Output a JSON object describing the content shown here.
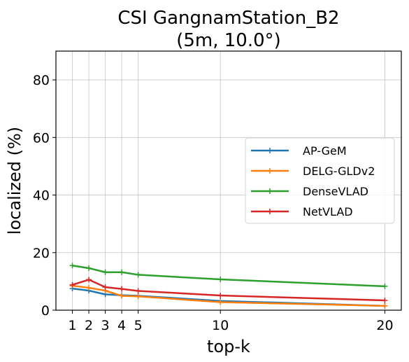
{
  "chart_data": {
    "type": "line",
    "title_line1": "CSI GangnamStation_B2",
    "title_line2": "(5m, 10.0°)",
    "xlabel": "top-k",
    "ylabel": "localized (%)",
    "x": [
      1,
      2,
      3,
      4,
      5,
      10,
      20
    ],
    "xticks": [
      "1",
      "2",
      "3",
      "4",
      "5",
      "10",
      "20"
    ],
    "xlim": [
      0,
      21
    ],
    "ylim": [
      0,
      90
    ],
    "yticks": [
      0,
      20,
      40,
      60,
      80
    ],
    "grid": true,
    "legend_position": "center-right",
    "series": [
      {
        "name": "AP-GeM",
        "color": "#1f77b4",
        "values": [
          7.5,
          6.8,
          5.5,
          5.2,
          5.0,
          3.2,
          1.5
        ]
      },
      {
        "name": "DELG-GLDv2",
        "color": "#ff7f0e",
        "values": [
          8.5,
          7.8,
          6.8,
          5.0,
          4.8,
          2.8,
          1.5
        ]
      },
      {
        "name": "DenseVLAD",
        "color": "#2ca02c",
        "values": [
          15.5,
          14.6,
          13.2,
          13.2,
          12.3,
          10.7,
          8.3
        ]
      },
      {
        "name": "NetVLAD",
        "color": "#d62728",
        "values": [
          8.8,
          10.6,
          8.0,
          7.4,
          6.7,
          5.1,
          3.4
        ]
      }
    ]
  }
}
